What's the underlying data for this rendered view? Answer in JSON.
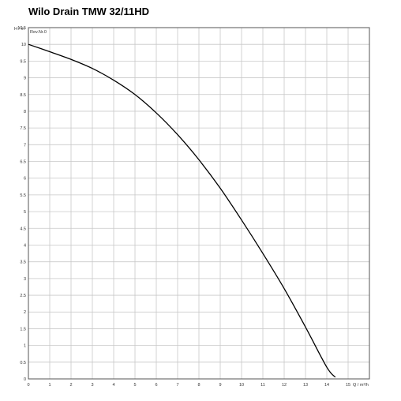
{
  "title": "Wilo Drain TMW 32/11HD",
  "chart_data": {
    "type": "line",
    "title": "Wilo Drain TMW 32/11HD",
    "ylabel": "H / m",
    "xlabel": "Q / m³/h",
    "legend_label": "Rev.Nr.0",
    "xlim": [
      0,
      16
    ],
    "ylim": [
      0,
      10.5
    ],
    "x_ticks": [
      0,
      1,
      2,
      3,
      4,
      5,
      6,
      7,
      8,
      9,
      10,
      11,
      12,
      13,
      14,
      15
    ],
    "y_ticks": [
      0,
      0.5,
      1,
      1.5,
      2,
      2.5,
      3,
      3.5,
      4,
      4.5,
      5,
      5.5,
      6,
      6.5,
      7,
      7.5,
      8,
      8.5,
      9,
      9.5,
      10,
      10.5
    ],
    "grid": true,
    "series": [
      {
        "x": [
          0,
          1,
          2,
          3,
          4,
          5,
          6,
          7,
          8,
          9,
          10,
          11,
          12,
          13,
          14,
          14.4
        ],
        "y": [
          10.0,
          9.78,
          9.55,
          9.28,
          8.93,
          8.5,
          7.95,
          7.3,
          6.55,
          5.7,
          4.75,
          3.75,
          2.7,
          1.55,
          0.35,
          0.05
        ]
      }
    ]
  }
}
